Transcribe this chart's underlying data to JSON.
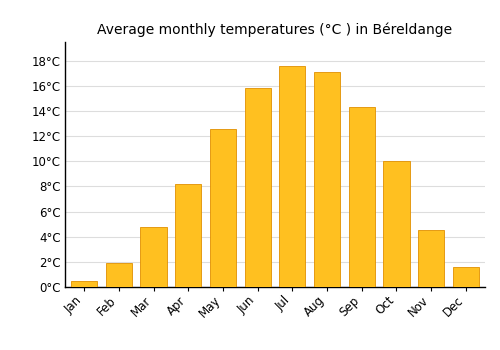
{
  "months": [
    "Jan",
    "Feb",
    "Mar",
    "Apr",
    "May",
    "Jun",
    "Jul",
    "Aug",
    "Sep",
    "Oct",
    "Nov",
    "Dec"
  ],
  "values": [
    0.5,
    1.9,
    4.8,
    8.2,
    12.6,
    15.8,
    17.6,
    17.1,
    14.3,
    10.0,
    4.5,
    1.6
  ],
  "bar_color": "#FFC020",
  "bar_edge_color": "#E09000",
  "title": "Average monthly temperatures (°C ) in Béreldange",
  "ylabel_ticks": [
    "0°C",
    "2°C",
    "4°C",
    "6°C",
    "8°C",
    "10°C",
    "12°C",
    "14°C",
    "16°C",
    "18°C"
  ],
  "ytick_values": [
    0,
    2,
    4,
    6,
    8,
    10,
    12,
    14,
    16,
    18
  ],
  "ylim": [
    0,
    19.5
  ],
  "background_color": "#ffffff",
  "grid_color": "#dddddd",
  "title_fontsize": 10,
  "tick_fontsize": 8.5,
  "bar_width": 0.75
}
